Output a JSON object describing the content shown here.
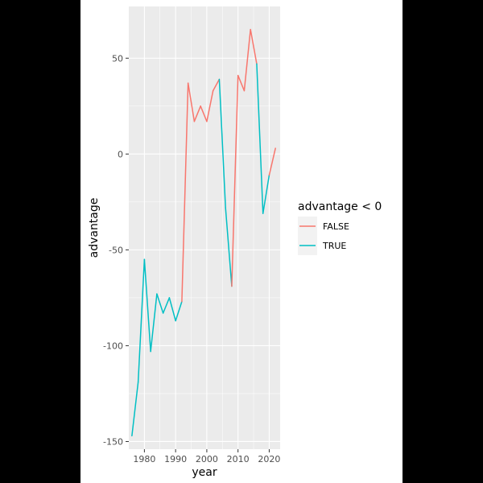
{
  "chart_data": {
    "type": "line",
    "xlabel": "year",
    "ylabel": "advantage",
    "xlim": [
      1975.0,
      2023.5
    ],
    "ylim": [
      -154,
      77
    ],
    "x_ticks": [
      1980,
      1990,
      2000,
      2010,
      2020
    ],
    "y_ticks": [
      -150,
      -100,
      -50,
      0,
      50
    ],
    "grid": true,
    "legend": {
      "title": "advantage < 0",
      "position": "right",
      "entries": [
        {
          "label": "FALSE",
          "color": "#F8766D"
        },
        {
          "label": "TRUE",
          "color": "#00BFC4"
        }
      ]
    },
    "data": {
      "x": [
        1976,
        1978,
        1980,
        1982,
        1984,
        1986,
        1988,
        1990,
        1992,
        1994,
        1996,
        1998,
        2000,
        2002,
        2004,
        2006,
        2008,
        2010,
        2012,
        2014,
        2016,
        2018,
        2020,
        2022
      ],
      "y": [
        -147,
        -119,
        -55,
        -103,
        -73,
        -83,
        -75,
        -87,
        -77,
        37,
        17,
        25,
        17,
        33,
        39,
        -28,
        -69,
        41,
        33,
        65,
        47,
        -31,
        -11,
        3
      ]
    },
    "series": [
      {
        "name": "FALSE",
        "color": "#F8766D"
      },
      {
        "name": "TRUE",
        "color": "#00BFC4"
      }
    ]
  }
}
